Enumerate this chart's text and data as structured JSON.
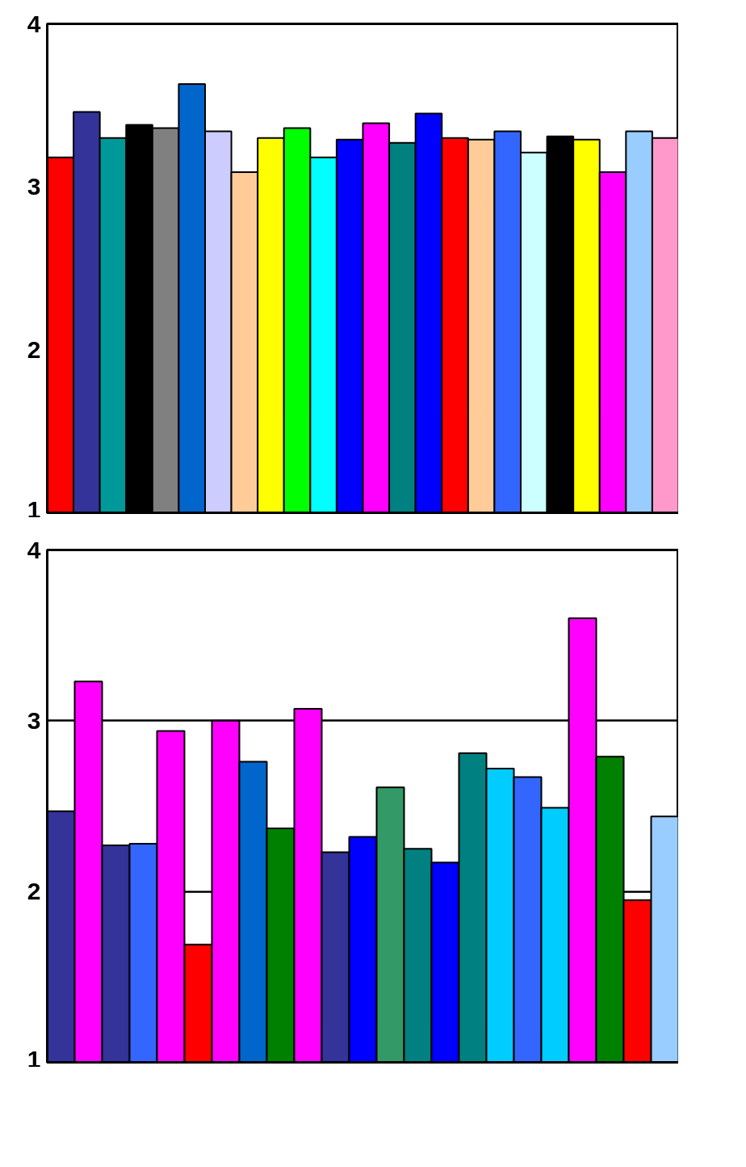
{
  "chart_data": [
    {
      "type": "bar",
      "categories": [
        null,
        null,
        null,
        null,
        null,
        null,
        null,
        null,
        null,
        null,
        null,
        null,
        null,
        null,
        null,
        null,
        null,
        null,
        null,
        null,
        null,
        null,
        null,
        null
      ],
      "values": [
        3.18,
        3.46,
        3.3,
        3.38,
        3.36,
        3.63,
        3.34,
        3.09,
        3.3,
        3.36,
        3.18,
        3.29,
        3.39,
        3.27,
        3.45,
        3.3,
        3.29,
        3.34,
        3.21,
        3.31,
        3.29,
        3.09,
        3.34,
        3.3
      ],
      "colors": [
        "#ff0000",
        "#333399",
        "#009999",
        "#000000",
        "#808080",
        "#0066cc",
        "#ccccff",
        "#ffcc99",
        "#ffff00",
        "#00ff00",
        "#00ffff",
        "#0000ff",
        "#ff00ff",
        "#008080",
        "#0000ff",
        "#ff0000",
        "#ffcc99",
        "#3366ff",
        "#ccffff",
        "#000000",
        "#ffff00",
        "#ff00ff",
        "#99ccff",
        "#ff99cc"
      ],
      "ylim": [
        1,
        4
      ],
      "yticks": [
        1,
        2,
        3,
        4
      ],
      "tick_labels": "y",
      "grid": false
    },
    {
      "type": "bar",
      "categories": [
        null,
        null,
        null,
        null,
        null,
        null,
        null,
        null,
        null,
        null,
        null,
        null,
        null,
        null,
        null,
        null,
        null,
        null,
        null,
        null,
        null,
        null,
        null
      ],
      "values": [
        2.47,
        3.23,
        2.27,
        2.28,
        2.94,
        1.69,
        3.0,
        2.76,
        2.37,
        3.07,
        2.23,
        2.32,
        2.61,
        2.25,
        2.17,
        2.81,
        2.72,
        2.67,
        2.49,
        3.6,
        2.79,
        1.95,
        2.44
      ],
      "colors": [
        "#333399",
        "#ff00ff",
        "#333399",
        "#3366ff",
        "#ff00ff",
        "#ff0000",
        "#ff00ff",
        "#0066cc",
        "#008000",
        "#ff00ff",
        "#333399",
        "#0000ff",
        "#339966",
        "#008080",
        "#0000ff",
        "#008080",
        "#00ccff",
        "#3366ff",
        "#00ccff",
        "#ff00ff",
        "#008000",
        "#ff0000",
        "#99ccff"
      ],
      "ylim": [
        1,
        4
      ],
      "yticks": [
        1,
        2,
        3,
        4
      ],
      "tick_labels": "y",
      "grid": "y"
    }
  ]
}
